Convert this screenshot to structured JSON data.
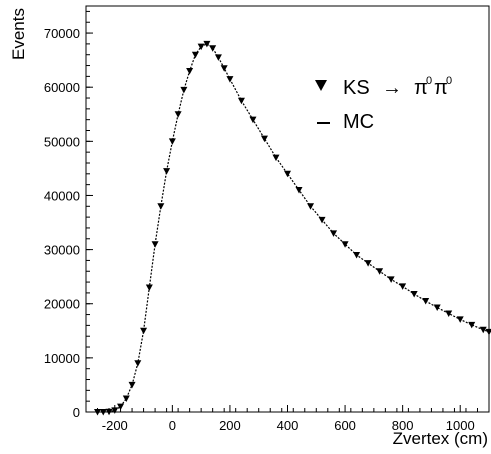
{
  "chart_data": {
    "type": "line",
    "title": "",
    "xlabel": "Zvertex (cm)",
    "ylabel": "Events",
    "xlim": [
      -300,
      1100
    ],
    "ylim": [
      0,
      75000
    ],
    "grid": false,
    "legend_placement": "top-right",
    "x_ticks": [
      -200,
      0,
      200,
      400,
      600,
      800,
      1000
    ],
    "y_ticks": [
      0,
      10000,
      20000,
      30000,
      40000,
      50000,
      60000,
      70000
    ],
    "x_tick_labels": [
      "-200",
      "0",
      "200",
      "400",
      "600",
      "800",
      "1000"
    ],
    "y_tick_labels": [
      "0",
      "10000",
      "20000",
      "30000",
      "40000",
      "50000",
      "60000",
      "70000"
    ],
    "legend": {
      "data_label_main": "KS",
      "data_label_arrow": "→",
      "data_label_pi": "π",
      "data_label_sup": "0",
      "mc_label": "MC"
    },
    "series": [
      {
        "name": "KS → π0π0",
        "style": "triangle-down",
        "x": [
          -260,
          -240,
          -220,
          -200,
          -180,
          -160,
          -140,
          -120,
          -100,
          -80,
          -60,
          -40,
          -20,
          0,
          20,
          40,
          60,
          80,
          100,
          120,
          140,
          160,
          180,
          200,
          240,
          280,
          320,
          360,
          400,
          440,
          480,
          520,
          560,
          600,
          640,
          680,
          720,
          760,
          800,
          840,
          880,
          920,
          960,
          1000,
          1040,
          1080,
          1100
        ],
        "y": [
          0,
          0,
          50,
          300,
          1000,
          2500,
          5000,
          9000,
          15000,
          23000,
          31000,
          38000,
          44500,
          50000,
          55000,
          59500,
          63000,
          66000,
          67500,
          68000,
          67200,
          65500,
          63500,
          61500,
          57500,
          54000,
          50500,
          47000,
          44000,
          41000,
          38000,
          35500,
          33000,
          31000,
          29000,
          27500,
          26000,
          24500,
          23200,
          21800,
          20500,
          19300,
          18200,
          17100,
          16100,
          15200,
          14800
        ]
      },
      {
        "name": "MC",
        "style": "dashed-line",
        "x": [
          -260,
          -240,
          -220,
          -200,
          -180,
          -160,
          -140,
          -120,
          -100,
          -80,
          -60,
          -40,
          -20,
          0,
          20,
          40,
          60,
          80,
          100,
          120,
          140,
          160,
          180,
          200,
          240,
          280,
          320,
          360,
          400,
          440,
          480,
          520,
          560,
          600,
          640,
          680,
          720,
          760,
          800,
          840,
          880,
          920,
          960,
          1000,
          1040,
          1080,
          1100
        ],
        "y": [
          0,
          0,
          50,
          300,
          1000,
          2500,
          5000,
          9000,
          15000,
          23000,
          31000,
          38000,
          44500,
          50000,
          55000,
          59500,
          63000,
          66000,
          67500,
          68000,
          67200,
          65500,
          63500,
          61500,
          57500,
          54000,
          50500,
          47000,
          44000,
          41000,
          38000,
          35500,
          33000,
          31000,
          29000,
          27500,
          26000,
          24500,
          23200,
          21800,
          20500,
          19300,
          18200,
          17100,
          16100,
          15200,
          14800
        ]
      }
    ]
  }
}
